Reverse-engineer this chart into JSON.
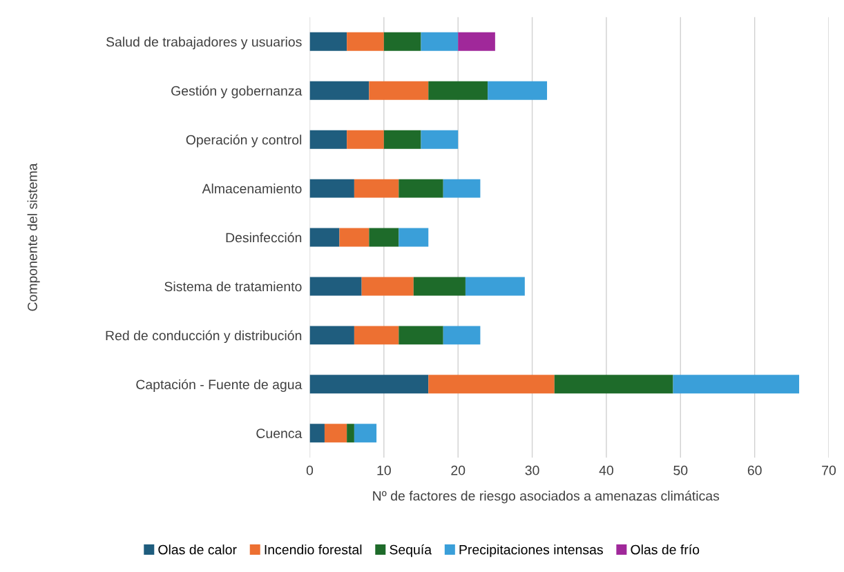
{
  "chart_data": {
    "type": "bar",
    "orientation": "horizontal",
    "stacked": true,
    "categories": [
      "Salud de trabajadores y usuarios",
      "Gestión y gobernanza",
      "Operación y control",
      "Almacenamiento",
      "Desinfección",
      "Sistema de tratamiento",
      "Red de conducción y distribución",
      "Captación - Fuente de agua",
      "Cuenca"
    ],
    "series": [
      {
        "name": "Olas de calor",
        "color": "#1f5d7e",
        "values": [
          5,
          8,
          5,
          6,
          4,
          7,
          6,
          16,
          2
        ]
      },
      {
        "name": "Incendio forestal",
        "color": "#ed7032",
        "values": [
          5,
          8,
          5,
          6,
          4,
          7,
          6,
          17,
          3
        ]
      },
      {
        "name": "Sequía",
        "color": "#1e6b2a",
        "values": [
          5,
          8,
          5,
          6,
          4,
          7,
          6,
          16,
          1
        ]
      },
      {
        "name": "Precipitaciones intensas",
        "color": "#3a9fd9",
        "values": [
          5,
          8,
          5,
          5,
          4,
          8,
          5,
          17,
          3
        ]
      },
      {
        "name": "Olas de frío",
        "color": "#a0289a",
        "values": [
          5,
          null,
          null,
          null,
          null,
          null,
          null,
          null,
          null
        ]
      }
    ],
    "xlabel": "Nº de factores de riesgo asociados a amenazas climáticas",
    "ylabel": "Componente del sistema",
    "xlim": [
      0,
      70
    ],
    "xticks": [
      0,
      10,
      20,
      30,
      40,
      50,
      60,
      70
    ],
    "grid": "x",
    "legend": "bottom"
  }
}
